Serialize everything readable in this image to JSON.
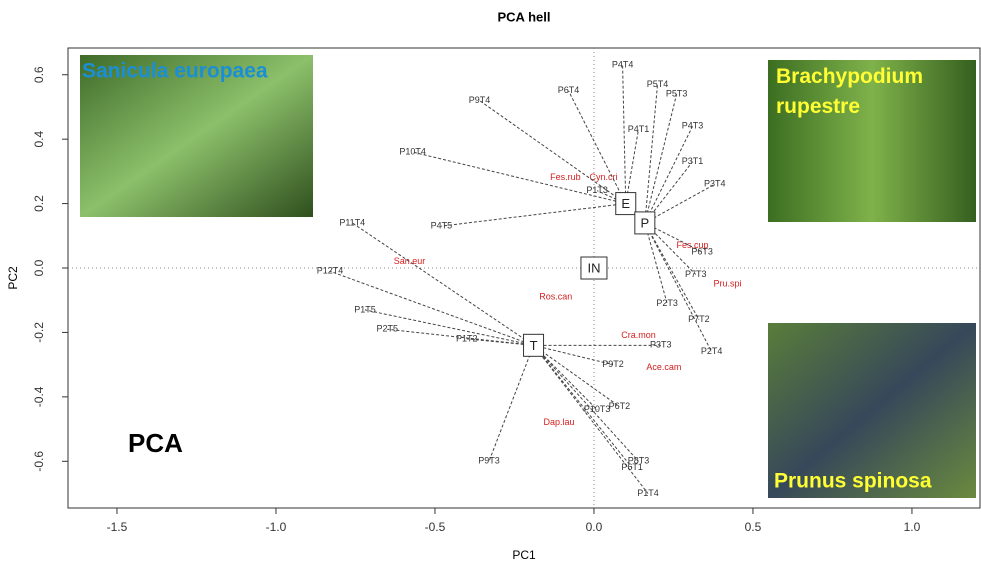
{
  "chart_data": {
    "type": "biplot",
    "title": "PCA hell",
    "xlabel": "PC1",
    "ylabel": "PC2",
    "xlim": [
      -1.654,
      1.214
    ],
    "ylim": [
      -0.745,
      0.683
    ],
    "xticks": [
      {
        "value": -1.5,
        "label": "-1.5"
      },
      {
        "value": -1,
        "label": "-1.0"
      },
      -0.5,
      {
        "value": 0,
        "label": "0.0"
      },
      0.5,
      {
        "value": 1,
        "label": "1.0"
      }
    ],
    "yticks": [
      -0.6,
      -0.4,
      -0.2,
      {
        "value": 0,
        "label": "0.0"
      },
      0.2,
      0.4,
      0.6
    ],
    "groups": [
      {
        "name": "E",
        "x": 0.1,
        "y": 0.2,
        "sites": [
          {
            "label": "P4T4",
            "x": 0.09,
            "y": 0.63
          },
          {
            "label": "P6T4",
            "x": -0.08,
            "y": 0.55
          },
          {
            "label": "P9T4",
            "x": -0.36,
            "y": 0.52
          },
          {
            "label": "P10T4",
            "x": -0.57,
            "y": 0.36
          },
          {
            "label": "P4T5",
            "x": -0.48,
            "y": 0.13
          },
          {
            "label": "P1T3",
            "x": 0.01,
            "y": 0.24
          },
          {
            "label": "P4T1",
            "x": 0.14,
            "y": 0.43
          }
        ]
      },
      {
        "name": "P",
        "x": 0.16,
        "y": 0.14,
        "sites": [
          {
            "label": "P5T4",
            "x": 0.2,
            "y": 0.57
          },
          {
            "label": "P5T3",
            "x": 0.26,
            "y": 0.54
          },
          {
            "label": "P4T3",
            "x": 0.31,
            "y": 0.44
          },
          {
            "label": "P3T1",
            "x": 0.31,
            "y": 0.33
          },
          {
            "label": "P3T4",
            "x": 0.38,
            "y": 0.26
          },
          {
            "label": "P6T3",
            "x": 0.34,
            "y": 0.05
          },
          {
            "label": "P7T3",
            "x": 0.32,
            "y": -0.02
          },
          {
            "label": "P2T3",
            "x": 0.23,
            "y": -0.11
          },
          {
            "label": "P7T2",
            "x": 0.33,
            "y": -0.16
          },
          {
            "label": "P2T4",
            "x": 0.37,
            "y": -0.26
          }
        ]
      },
      {
        "name": "T",
        "x": -0.19,
        "y": -0.24,
        "sites": [
          {
            "label": "P11T4",
            "x": -0.76,
            "y": 0.14
          },
          {
            "label": "P12T4",
            "x": -0.83,
            "y": -0.01
          },
          {
            "label": "P1T5",
            "x": -0.72,
            "y": -0.13
          },
          {
            "label": "P2T5",
            "x": -0.65,
            "y": -0.19
          },
          {
            "label": "P1T2",
            "x": -0.4,
            "y": -0.22
          },
          {
            "label": "P9T3",
            "x": -0.33,
            "y": -0.6
          },
          {
            "label": "P1T4",
            "x": 0.17,
            "y": -0.7
          },
          {
            "label": "P6T1",
            "x": 0.12,
            "y": -0.62
          },
          {
            "label": "P8T3",
            "x": 0.14,
            "y": -0.6
          },
          {
            "label": "P10T3",
            "x": 0.01,
            "y": -0.44
          },
          {
            "label": "P6T2",
            "x": 0.08,
            "y": -0.43
          },
          {
            "label": "P9T2",
            "x": 0.06,
            "y": -0.3
          },
          {
            "label": "P3T3",
            "x": 0.21,
            "y": -0.24
          }
        ]
      },
      {
        "name": "IN",
        "x": 0.0,
        "y": 0.0,
        "sites": []
      }
    ],
    "species": [
      {
        "label": "Fes.rub",
        "x": -0.09,
        "y": 0.28
      },
      {
        "label": "Cyn.cri",
        "x": 0.03,
        "y": 0.28
      },
      {
        "label": "Pru.spi",
        "x": 0.42,
        "y": -0.05
      },
      {
        "label": "Cra.mon",
        "x": 0.14,
        "y": -0.21
      },
      {
        "label": "Ace.cam",
        "x": 0.22,
        "y": -0.31
      },
      {
        "label": "Dap.lau",
        "x": -0.11,
        "y": -0.48
      },
      {
        "label": "San.eur",
        "x": -0.58,
        "y": 0.02
      },
      {
        "label": "Ros.can",
        "x": -0.12,
        "y": -0.09
      },
      {
        "label": "Fes.cup",
        "x": 0.31,
        "y": 0.07
      }
    ],
    "photos": [
      {
        "caption": "Sanicula europaea",
        "color": "#1a8fd6"
      },
      {
        "caption": "Brachypodium rupestre",
        "color": "#ffff33"
      },
      {
        "caption": "Prunus spinosa",
        "color": "#ffff33"
      }
    ],
    "annotation": "PCA"
  }
}
